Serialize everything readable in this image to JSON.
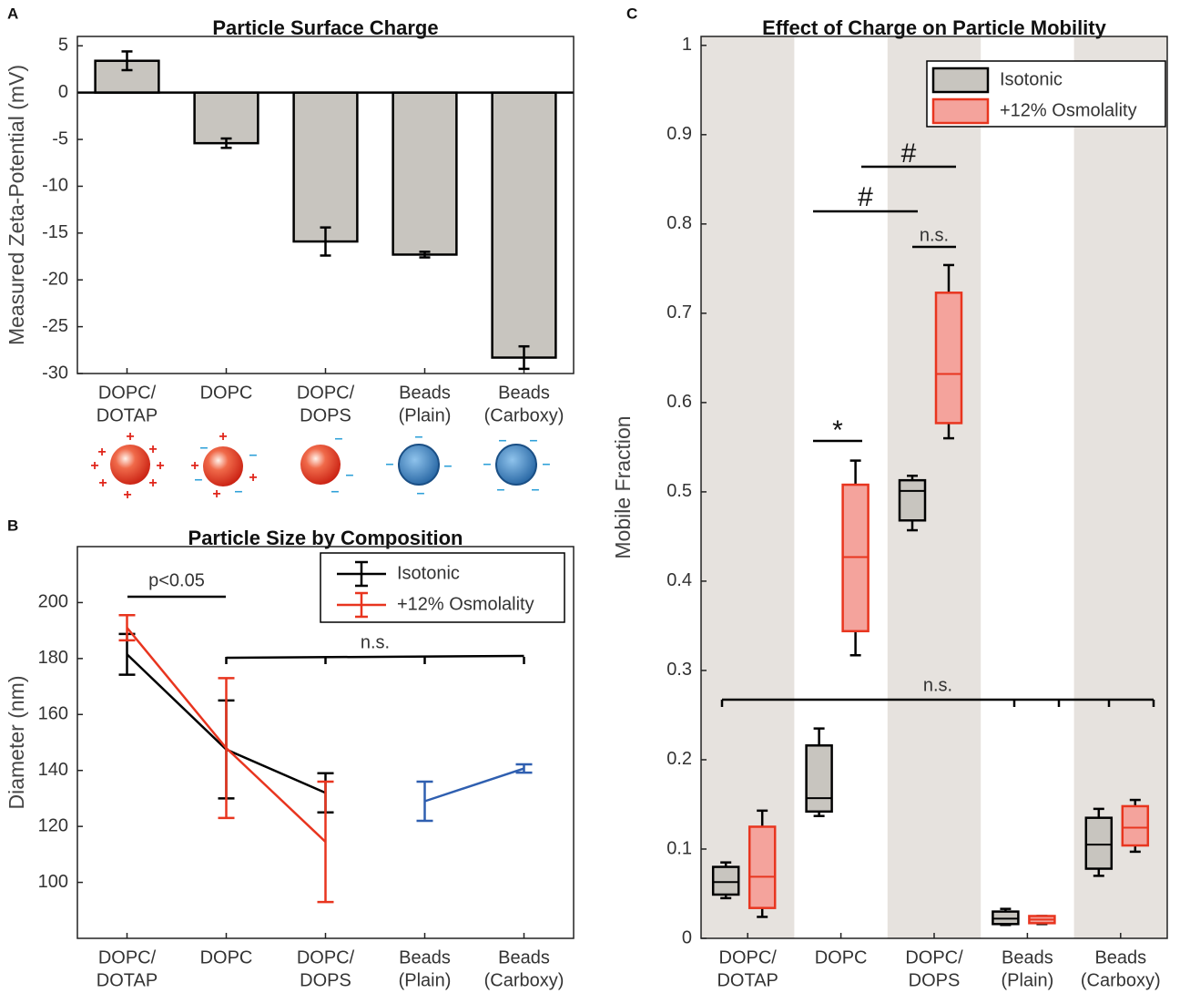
{
  "chart_data": [
    {
      "type": "bar",
      "panel_label": "A",
      "title": "Particle Surface Charge",
      "ylabel": "Measured Zeta-Potential (mV)",
      "categories": [
        [
          "DOPC/",
          "DOTAP"
        ],
        [
          "DOPC"
        ],
        [
          "DOPC/",
          "DOPS"
        ],
        [
          "Beads",
          "(Plain)"
        ],
        [
          "Beads",
          "(Carboxy)"
        ]
      ],
      "values": [
        3.4,
        -5.4,
        -15.9,
        -17.3,
        -28.3
      ],
      "errors": [
        1.0,
        0.5,
        1.5,
        0.3,
        1.2
      ],
      "color": "#c8c5bf",
      "ylim": [
        -30,
        6
      ],
      "yticks": [
        -30,
        -25,
        -20,
        -15,
        -10,
        -5,
        0,
        5
      ]
    },
    {
      "type": "line",
      "panel_label": "B",
      "title": "Particle Size by Composition",
      "ylabel": "Diameter (nm)",
      "categories": [
        [
          "DOPC/",
          "DOTAP"
        ],
        [
          "DOPC"
        ],
        [
          "DOPC/",
          "DOPS"
        ],
        [
          "Beads",
          "(Plain)"
        ],
        [
          "Beads",
          "(Carboxy)"
        ]
      ],
      "series": [
        {
          "name": "Isotonic",
          "color": "#000000",
          "values": [
            181.5,
            147.5,
            132,
            null,
            null
          ],
          "errors": [
            7.3,
            17.5,
            7,
            null,
            null
          ]
        },
        {
          "name": "+12% Osmolality",
          "color": "#e8351f",
          "values": [
            191,
            148,
            114.5,
            null,
            null
          ],
          "errors": [
            4.5,
            25,
            21.5,
            null,
            null
          ]
        },
        {
          "color": "#2f5fb0",
          "values": [
            null,
            null,
            null,
            129,
            140.7
          ],
          "errors": [
            null,
            null,
            null,
            7,
            1.5
          ]
        }
      ],
      "annotations": [
        "p<0.05",
        "n.s."
      ],
      "ylim": [
        80,
        220
      ],
      "yticks": [
        100,
        120,
        140,
        160,
        180,
        200
      ],
      "legend": "upper right"
    },
    {
      "type": "box",
      "panel_label": "C",
      "title": "Effect of Charge on Particle Mobility",
      "ylabel": "Mobile Fraction",
      "categories": [
        [
          "DOPC/",
          "DOTAP"
        ],
        [
          "DOPC"
        ],
        [
          "DOPC/",
          "DOPS"
        ],
        [
          "Beads",
          "(Plain)"
        ],
        [
          "Beads",
          "(Carboxy)"
        ]
      ],
      "series": [
        {
          "name": "Isotonic",
          "color": "#c8c5bf",
          "edge": "#000000",
          "min": [
            0.045,
            0.137,
            0.457,
            0.015,
            0.07
          ],
          "q1": [
            0.049,
            0.142,
            0.468,
            0.016,
            0.078
          ],
          "median": [
            0.063,
            0.157,
            0.501,
            0.022,
            0.105
          ],
          "q3": [
            0.08,
            0.216,
            0.513,
            0.03,
            0.135
          ],
          "max": [
            0.085,
            0.235,
            0.518,
            0.033,
            0.145
          ]
        },
        {
          "name": "+12% Osmolality",
          "color": "#f4a39c",
          "edge": "#e8351f",
          "min": [
            0.024,
            0.317,
            0.56,
            0.016,
            0.097
          ],
          "q1": [
            0.034,
            0.344,
            0.577,
            0.017,
            0.104
          ],
          "median": [
            0.069,
            0.427,
            0.632,
            0.021,
            0.124
          ],
          "q3": [
            0.125,
            0.508,
            0.723,
            0.025,
            0.148
          ],
          "max": [
            0.143,
            0.535,
            0.754,
            0.025,
            0.155
          ]
        }
      ],
      "annotations": [
        "*",
        "#",
        "#",
        "n.s.",
        "n.s."
      ],
      "ylim": [
        0,
        1.01
      ],
      "yticks": [
        0,
        0.1,
        0.2,
        0.3,
        0.4,
        0.5,
        0.6,
        0.7,
        0.8,
        0.9,
        1
      ],
      "legend": "upper right"
    }
  ]
}
